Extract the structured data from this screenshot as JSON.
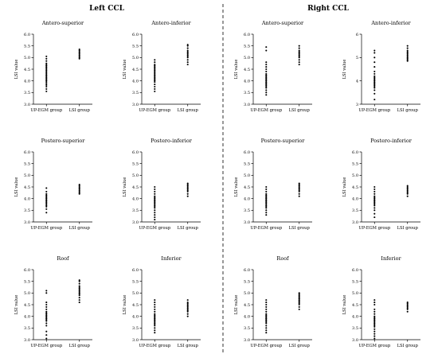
{
  "headers": {
    "left": "Left CCL",
    "right": "Right CCL"
  },
  "chart_data": [
    {
      "type": "scatter",
      "group": "Left CCL",
      "title": "Antero-superior",
      "ylabel": "LSI value",
      "categories": [
        "UP-EGM group",
        "LSI group"
      ],
      "ylim": [
        3.0,
        6.0
      ],
      "yticks": [
        "3.0",
        "3.5",
        "4.0",
        "4.5",
        "5.0",
        "5.5",
        "6.0"
      ],
      "series": [
        {
          "values": [
            3.55,
            3.65,
            3.75,
            3.82,
            3.88,
            3.95,
            4.0,
            4.05,
            4.1,
            4.15,
            4.2,
            4.25,
            4.3,
            4.35,
            4.4,
            4.45,
            4.5,
            4.55,
            4.6,
            4.65,
            4.7,
            4.75,
            4.85,
            4.95,
            5.05
          ]
        },
        {
          "values": [
            4.95,
            5.0,
            5.05,
            5.1,
            5.15,
            5.2,
            5.25,
            5.3,
            5.35
          ]
        }
      ]
    },
    {
      "type": "scatter",
      "group": "Left CCL",
      "title": "Antero-inferior",
      "ylabel": "LSI value",
      "categories": [
        "UP-EGM group",
        "LSI group"
      ],
      "ylim": [
        3.0,
        6.0
      ],
      "yticks": [
        "3.0",
        "3.5",
        "4.0",
        "4.5",
        "5.0",
        "5.5",
        "6.0"
      ],
      "series": [
        {
          "values": [
            3.55,
            3.65,
            3.75,
            3.85,
            3.95,
            4.0,
            4.05,
            4.1,
            4.15,
            4.2,
            4.25,
            4.3,
            4.35,
            4.4,
            4.45,
            4.5,
            4.55,
            4.6,
            4.65,
            4.7,
            4.8,
            4.9
          ]
        },
        {
          "values": [
            4.7,
            4.8,
            4.9,
            5.0,
            5.05,
            5.1,
            5.15,
            5.2,
            5.25,
            5.3,
            5.4,
            5.5,
            5.55
          ]
        }
      ]
    },
    {
      "type": "scatter",
      "group": "Right CCL",
      "title": "Antero-superior",
      "ylabel": "LSI value",
      "categories": [
        "UP-EGM group",
        "LSI group"
      ],
      "ylim": [
        3.0,
        6.0
      ],
      "yticks": [
        "3.0",
        "3.5",
        "4.0",
        "4.5",
        "5.0",
        "5.5",
        "6.0"
      ],
      "series": [
        {
          "values": [
            3.4,
            3.5,
            3.6,
            3.7,
            3.75,
            3.8,
            3.85,
            3.9,
            3.95,
            4.0,
            4.05,
            4.1,
            4.15,
            4.2,
            4.25,
            4.3,
            4.4,
            4.5,
            4.6,
            4.7,
            4.8,
            5.3,
            5.45
          ]
        },
        {
          "values": [
            4.7,
            4.8,
            4.9,
            5.0,
            5.05,
            5.1,
            5.15,
            5.2,
            5.25,
            5.3,
            5.4,
            5.5
          ]
        }
      ]
    },
    {
      "type": "scatter",
      "group": "Right CCL",
      "title": "Antero-inferior",
      "ylabel": "LSI value",
      "categories": [
        "UP-EGM group",
        "LSI group"
      ],
      "ylim": [
        3,
        6
      ],
      "yticks": [
        "3",
        "4",
        "5",
        "6"
      ],
      "series": [
        {
          "values": [
            3.2,
            3.45,
            3.6,
            3.7,
            3.75,
            3.8,
            3.85,
            3.9,
            3.95,
            4.0,
            4.05,
            4.1,
            4.15,
            4.2,
            4.3,
            4.4,
            4.6,
            4.8,
            5.0,
            5.2,
            5.3
          ]
        },
        {
          "values": [
            4.85,
            4.9,
            4.95,
            5.0,
            5.05,
            5.1,
            5.15,
            5.2,
            5.25,
            5.3,
            5.4,
            5.5
          ]
        }
      ]
    },
    {
      "type": "scatter",
      "group": "Left CCL",
      "title": "Postero-superior",
      "ylabel": "LSI value",
      "categories": [
        "UP-EGM group",
        "LSI group"
      ],
      "ylim": [
        3.0,
        6.0
      ],
      "yticks": [
        "3.0",
        "3.5",
        "4.0",
        "4.5",
        "5.0",
        "5.5",
        "6.0"
      ],
      "series": [
        {
          "values": [
            3.4,
            3.55,
            3.65,
            3.7,
            3.75,
            3.8,
            3.85,
            3.9,
            3.95,
            4.0,
            4.05,
            4.1,
            4.15,
            4.2,
            4.3,
            4.45
          ]
        },
        {
          "values": [
            4.2,
            4.25,
            4.3,
            4.35,
            4.4,
            4.45,
            4.5,
            4.55,
            4.6
          ]
        }
      ]
    },
    {
      "type": "scatter",
      "group": "Left CCL",
      "title": "Postero-inferior",
      "ylabel": "LSI value",
      "categories": [
        "UP-EGM group",
        "LSI group"
      ],
      "ylim": [
        3.0,
        6.0
      ],
      "yticks": [
        "3.0",
        "3.5",
        "4.0",
        "4.5",
        "5.0",
        "5.5",
        "6.0"
      ],
      "series": [
        {
          "values": [
            3.1,
            3.2,
            3.3,
            3.4,
            3.5,
            3.6,
            3.65,
            3.7,
            3.75,
            3.8,
            3.85,
            3.9,
            3.95,
            4.0,
            4.05,
            4.1,
            4.2,
            4.3,
            4.4,
            4.5
          ]
        },
        {
          "values": [
            4.1,
            4.2,
            4.3,
            4.35,
            4.4,
            4.45,
            4.5,
            4.55,
            4.6,
            4.65
          ]
        }
      ]
    },
    {
      "type": "scatter",
      "group": "Right CCL",
      "title": "Postero-superior",
      "ylabel": "LSI value",
      "categories": [
        "UP-EGM group",
        "LSI group"
      ],
      "ylim": [
        3.0,
        6.0
      ],
      "yticks": [
        "3.0",
        "3.5",
        "4.0",
        "4.5",
        "5.0",
        "5.5",
        "6.0"
      ],
      "series": [
        {
          "values": [
            3.3,
            3.4,
            3.5,
            3.6,
            3.65,
            3.7,
            3.75,
            3.8,
            3.85,
            3.9,
            3.95,
            4.0,
            4.05,
            4.1,
            4.15,
            4.2,
            4.3,
            4.4,
            4.5
          ]
        },
        {
          "values": [
            4.1,
            4.2,
            4.3,
            4.35,
            4.4,
            4.45,
            4.5,
            4.55,
            4.6,
            4.65
          ]
        }
      ]
    },
    {
      "type": "scatter",
      "group": "Right CCL",
      "title": "Postero-inferior",
      "ylabel": "LSI value",
      "categories": [
        "UP-EGM group",
        "LSI group"
      ],
      "ylim": [
        3.0,
        6.0
      ],
      "yticks": [
        "3.0",
        "3.5",
        "4.0",
        "4.5",
        "5.0",
        "5.5",
        "6.0"
      ],
      "series": [
        {
          "values": [
            3.2,
            3.35,
            3.5,
            3.6,
            3.7,
            3.75,
            3.8,
            3.85,
            3.9,
            3.95,
            4.0,
            4.05,
            4.1,
            4.2,
            4.3,
            4.4,
            4.5
          ]
        },
        {
          "values": [
            4.1,
            4.2,
            4.25,
            4.3,
            4.35,
            4.4,
            4.45,
            4.5,
            4.55
          ]
        }
      ]
    },
    {
      "type": "scatter",
      "group": "Left CCL",
      "title": "Roof",
      "ylabel": "LSI value",
      "categories": [
        "UP-EGM group",
        "LSI group"
      ],
      "ylim": [
        3.0,
        6.0
      ],
      "yticks": [
        "3.0",
        "3.5",
        "4.0",
        "4.5",
        "5.0",
        "5.5",
        "6.0"
      ],
      "series": [
        {
          "values": [
            3.05,
            3.2,
            3.35,
            3.6,
            3.7,
            3.8,
            3.85,
            3.9,
            3.95,
            4.0,
            4.05,
            4.1,
            4.15,
            4.2,
            4.3,
            4.4,
            4.5,
            4.6,
            5.0,
            5.1
          ]
        },
        {
          "values": [
            4.6,
            4.7,
            4.8,
            4.9,
            4.95,
            5.0,
            5.05,
            5.1,
            5.15,
            5.2,
            5.25,
            5.3,
            5.4,
            5.5,
            5.55
          ]
        }
      ]
    },
    {
      "type": "scatter",
      "group": "Left CCL",
      "title": "Inferior",
      "ylabel": "LSI value",
      "categories": [
        "UP-EGM group",
        "LSI group"
      ],
      "ylim": [
        3.0,
        6.0
      ],
      "yticks": [
        "3.0",
        "3.5",
        "4.0",
        "4.5",
        "5.0",
        "5.5",
        "6.0"
      ],
      "series": [
        {
          "values": [
            3.3,
            3.4,
            3.5,
            3.6,
            3.65,
            3.7,
            3.75,
            3.8,
            3.85,
            3.9,
            3.95,
            4.0,
            4.05,
            4.1,
            4.2,
            4.3,
            4.4,
            4.5,
            4.6,
            4.7
          ]
        },
        {
          "values": [
            4.0,
            4.1,
            4.2,
            4.25,
            4.3,
            4.35,
            4.4,
            4.45,
            4.5,
            4.55,
            4.6,
            4.7
          ]
        }
      ]
    },
    {
      "type": "scatter",
      "group": "Right CCL",
      "title": "Roof",
      "ylabel": "LSI value",
      "categories": [
        "UP-EGM group",
        "LSI group"
      ],
      "ylim": [
        3.0,
        6.0
      ],
      "yticks": [
        "3.0",
        "3.5",
        "4.0",
        "4.5",
        "5.0",
        "5.5",
        "6.0"
      ],
      "series": [
        {
          "values": [
            3.3,
            3.4,
            3.5,
            3.6,
            3.7,
            3.75,
            3.8,
            3.85,
            3.9,
            3.95,
            4.0,
            4.05,
            4.1,
            4.2,
            4.3,
            4.4,
            4.5,
            4.6,
            4.7
          ]
        },
        {
          "values": [
            4.3,
            4.4,
            4.5,
            4.55,
            4.6,
            4.65,
            4.7,
            4.75,
            4.8,
            4.85,
            4.9,
            4.95,
            5.0
          ]
        }
      ]
    },
    {
      "type": "scatter",
      "group": "Right CCL",
      "title": "Inferior",
      "ylabel": "LSI value",
      "categories": [
        "UP-EGM group",
        "LSI group"
      ],
      "ylim": [
        3.0,
        6.0
      ],
      "yticks": [
        "3.0",
        "3.5",
        "4.0",
        "4.5",
        "5.0",
        "5.5",
        "6.0"
      ],
      "series": [
        {
          "values": [
            3.05,
            3.15,
            3.25,
            3.35,
            3.45,
            3.55,
            3.6,
            3.65,
            3.7,
            3.75,
            3.8,
            3.85,
            3.9,
            3.95,
            4.0,
            4.1,
            4.2,
            4.3,
            4.5,
            4.6,
            4.7
          ]
        },
        {
          "values": [
            4.2,
            4.3,
            4.35,
            4.4,
            4.45,
            4.5,
            4.55,
            4.6
          ]
        }
      ]
    }
  ]
}
